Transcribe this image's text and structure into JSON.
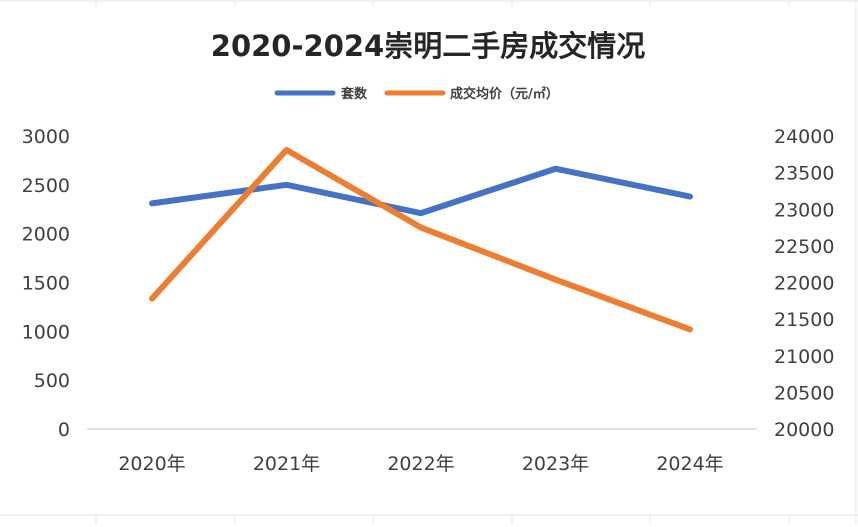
{
  "chart_data": {
    "type": "line",
    "title": "2020-2024崇明二手房成交情况",
    "categories": [
      "2020年",
      "2021年",
      "2022年",
      "2023年",
      "2024年"
    ],
    "series": [
      {
        "name": "套数",
        "axis": "left",
        "color": "#4472C4",
        "values": [
          2310,
          2500,
          2210,
          2665,
          2380
        ]
      },
      {
        "name": "成交均价（元/㎡）",
        "axis": "right",
        "color": "#ED7D31",
        "values": [
          21780,
          23810,
          22750,
          22040,
          21360
        ]
      }
    ],
    "y_left": {
      "min": 0,
      "max": 3000,
      "ticks": [
        "0",
        "500",
        "1000",
        "1500",
        "2000",
        "2500",
        "3000"
      ]
    },
    "y_right": {
      "min": 20000,
      "max": 24000,
      "ticks": [
        "20000",
        "20500",
        "21000",
        "21500",
        "22000",
        "22500",
        "23000",
        "23500",
        "24000"
      ]
    },
    "grid": false,
    "legend_position": "top"
  }
}
